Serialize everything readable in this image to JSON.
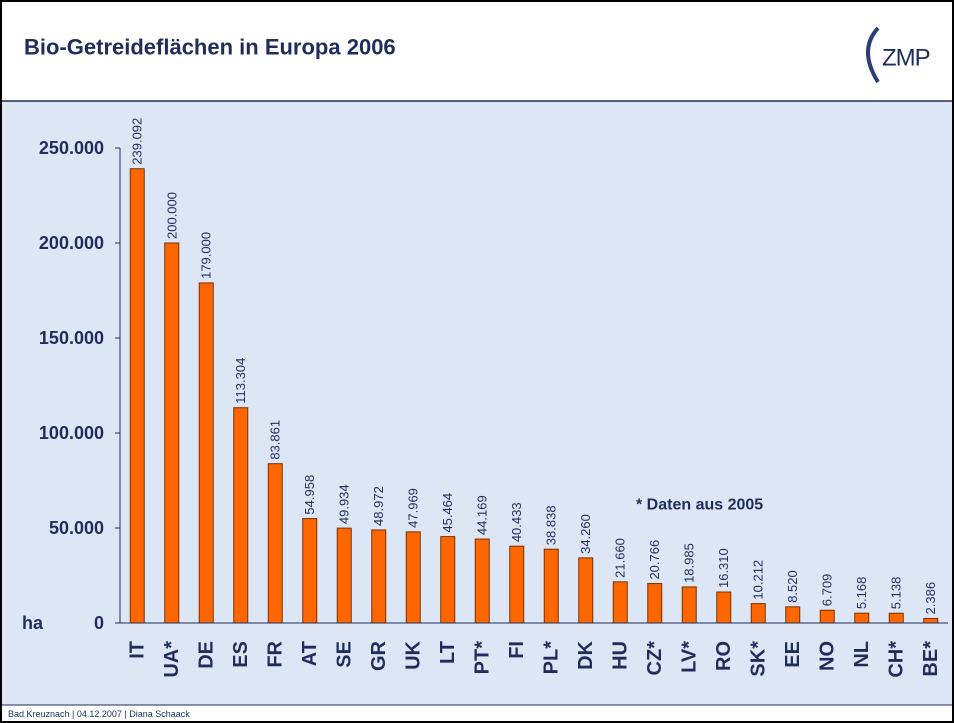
{
  "chart_data": {
    "type": "bar",
    "title": "Bio-Getreideflächen in Europa 2006",
    "logo": "ZMP",
    "y_label": "ha",
    "annotation": "* Daten aus 2005",
    "footer": "Bad Kreuznach | 04.12.2007 | Diana Schaack",
    "categories": [
      "IT",
      "UA*",
      "DE",
      "ES",
      "FR",
      "AT",
      "SE",
      "GR",
      "UK",
      "LT",
      "PT*",
      "FI",
      "PL*",
      "DK",
      "HU",
      "CZ*",
      "LV*",
      "RO",
      "SK*",
      "EE",
      "NO",
      "NL",
      "CH*",
      "BE*"
    ],
    "values": [
      239092,
      200000,
      179000,
      113304,
      83861,
      54958,
      49934,
      48972,
      47969,
      45464,
      44169,
      40433,
      38838,
      34260,
      21660,
      20766,
      18985,
      16310,
      10212,
      8520,
      6709,
      5168,
      5138,
      2386
    ],
    "value_labels": [
      "239.092",
      "200.000",
      "179.000",
      "113.304",
      "83.861",
      "54.958",
      "49.934",
      "48.972",
      "47.969",
      "45.464",
      "44.169",
      "40.433",
      "38.838",
      "34.260",
      "21.660",
      "20.766",
      "18.985",
      "16.310",
      "10.212",
      "8.520",
      "6.709",
      "5.168",
      "5.138",
      "2.386"
    ],
    "color": "#ff6600",
    "ylim": [
      0,
      250000
    ],
    "yticks": [
      0,
      {
        "value": 50000,
        "label": "50.000"
      },
      {
        "value": 100000,
        "label": "100.000"
      },
      {
        "value": 150000,
        "label": "150.000"
      },
      {
        "value": 200000,
        "label": "200.000"
      },
      {
        "value": 250000,
        "label": "250.000"
      }
    ],
    "grid": false
  }
}
